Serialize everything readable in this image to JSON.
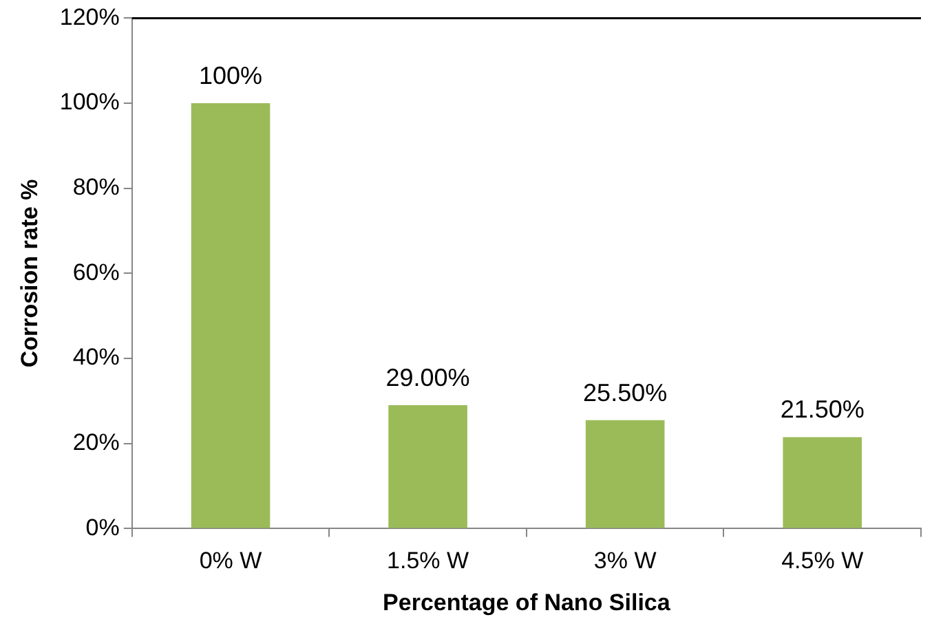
{
  "chart_data": {
    "type": "bar",
    "xlabel": "Percentage of Nano Silica",
    "ylabel": "Corrosion rate %",
    "categories": [
      "0% W",
      "1.5% W",
      "3% W",
      "4.5% W"
    ],
    "values": [
      100,
      29,
      25.5,
      21.5
    ],
    "value_labels": [
      "100%",
      "29.00%",
      "25.50%",
      "21.50%"
    ],
    "color": "#9bbb59",
    "ylim": [
      0,
      120
    ],
    "yticks": [
      {
        "value": 0,
        "label": "0%"
      },
      {
        "value": 20,
        "label": "20%"
      },
      {
        "value": 40,
        "label": "40%"
      },
      {
        "value": 60,
        "label": "60%"
      },
      {
        "value": 80,
        "label": "80%"
      },
      {
        "value": 100,
        "label": "100%"
      },
      {
        "value": 120,
        "label": "120%"
      }
    ],
    "grid": false,
    "legend": false
  }
}
